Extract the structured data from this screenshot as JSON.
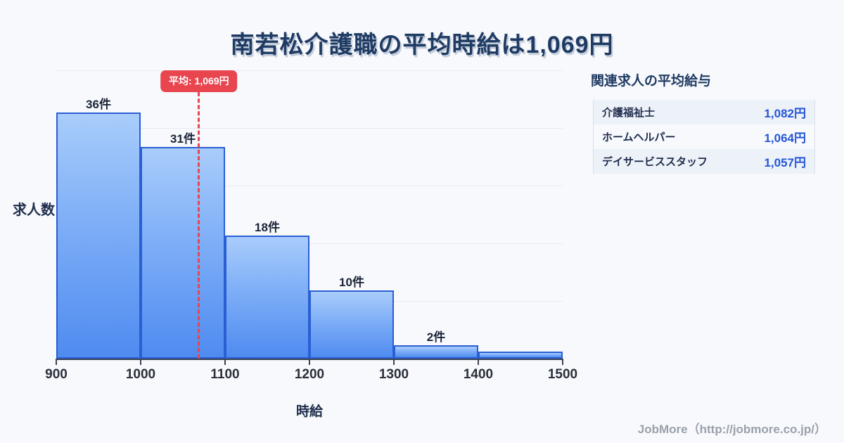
{
  "title": "南若松介護職の平均時給は1,069円",
  "chart_data": {
    "type": "bar",
    "subtype": "histogram",
    "title": "南若松介護職の平均時給は1,069円",
    "xlabel": "時給",
    "ylabel": "求人数",
    "bin_edges": [
      900,
      1000,
      1100,
      1200,
      1300,
      1400,
      1500
    ],
    "counts": [
      36,
      31,
      18,
      10,
      2,
      1
    ],
    "bar_labels": [
      "36件",
      "31件",
      "18件",
      "10件",
      "2件",
      ""
    ],
    "x_ticks": [
      "900",
      "1000",
      "1100",
      "1200",
      "1300",
      "1400",
      "1500"
    ],
    "ylim": [
      0,
      42
    ],
    "grid": "horizontal",
    "average": {
      "value": 1069,
      "label": "平均: 1,069円"
    }
  },
  "related_panel": {
    "heading": "関連求人の平均給与",
    "rows": [
      {
        "label": "介護福祉士",
        "value": "1,082円"
      },
      {
        "label": "ホームヘルパー",
        "value": "1,064円"
      },
      {
        "label": "デイサービススタッフ",
        "value": "1,057円"
      }
    ]
  },
  "footer": {
    "credit": "JobMore（http://jobmore.co.jp/）"
  },
  "colors": {
    "background": "#f7f9fc",
    "title_text": "#1f3b63",
    "bar_fill_top": "#a9cdfb",
    "bar_fill_bottom": "#4f8bf0",
    "bar_border": "#2a5fd4",
    "average_red": "#e8454f",
    "value_blue": "#2456d6",
    "row_alt_bg": "#edf1f8",
    "gridline": "#e5eaf2",
    "axis": "#3c4454",
    "footer_text": "#9ba1ab"
  }
}
